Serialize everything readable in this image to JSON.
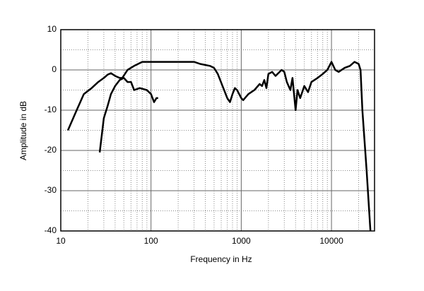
{
  "chart_data": {
    "type": "line",
    "xlabel": "Frequency in Hz",
    "ylabel": "Amplitude in dB",
    "xscale": "log",
    "xlim": [
      10,
      30000
    ],
    "ylim": [
      -40,
      10
    ],
    "xticks": [
      10,
      100,
      1000,
      10000
    ],
    "yticks": [
      10,
      0,
      -10,
      -20,
      -30,
      -40
    ],
    "xminor": [
      20,
      30,
      40,
      50,
      60,
      70,
      80,
      90,
      200,
      300,
      400,
      500,
      600,
      700,
      800,
      900,
      2000,
      3000,
      4000,
      5000,
      6000,
      7000,
      8000,
      9000,
      20000
    ],
    "yminor": [
      5,
      -5,
      -15,
      -25,
      -35
    ],
    "grid": true,
    "series": [
      {
        "color": "#000000",
        "x": [
          12,
          15,
          18,
          22,
          26,
          30,
          33,
          36,
          40,
          45,
          48,
          55,
          65,
          80,
          150,
          300,
          350,
          450,
          500,
          550,
          620,
          700,
          750,
          800,
          850,
          900,
          1000,
          1050,
          1200,
          1400,
          1600,
          1700,
          1800,
          1900,
          2000,
          2200,
          2400,
          2800,
          3000,
          3200,
          3500,
          3700,
          4000,
          4200,
          4500,
          5000,
          5500,
          6000,
          7000,
          8000,
          9000,
          10000,
          11000,
          12000,
          14000,
          16000,
          18000,
          20000,
          21000,
          22000,
          24500,
          27000
        ],
        "values": [
          -15,
          -10,
          -6,
          -4.5,
          -3,
          -2,
          -1.2,
          -0.8,
          -1.5,
          -2,
          -2,
          0,
          1,
          2,
          2,
          2,
          1.5,
          1,
          0.5,
          -1,
          -4,
          -7,
          -8,
          -6,
          -4.5,
          -5,
          -7,
          -7.5,
          -6,
          -5,
          -3.5,
          -4,
          -2.5,
          -4.5,
          -1,
          -0.5,
          -1.5,
          0,
          -0.5,
          -3,
          -5,
          -2,
          -10,
          -5,
          -7,
          -4,
          -5.5,
          -3,
          -2,
          -1,
          0,
          2,
          0,
          -0.5,
          0.5,
          1,
          2,
          1.5,
          0,
          -10,
          -25,
          -40
        ]
      },
      {
        "color": "#000000",
        "x": [
          27,
          30,
          33,
          36,
          40,
          45,
          50,
          55,
          60,
          65,
          75,
          90,
          100,
          108,
          115,
          120
        ],
        "values": [
          -20.5,
          -12,
          -9,
          -6,
          -4,
          -2.5,
          -2,
          -3,
          -3,
          -5,
          -4.5,
          -5,
          -6,
          -8,
          -7,
          -7
        ]
      }
    ]
  }
}
